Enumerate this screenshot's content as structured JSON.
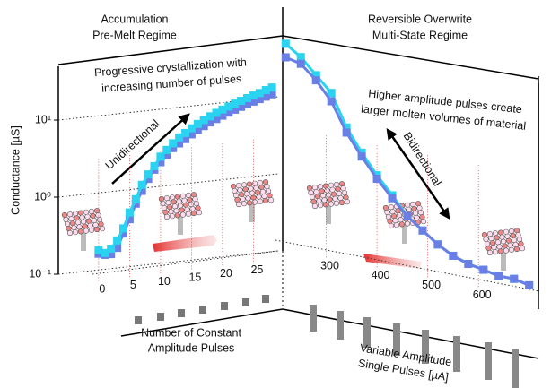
{
  "chart_data": [
    {
      "type": "line",
      "log_y": true,
      "grid": true,
      "ylabel": "Conductance [µS]",
      "xlabel": [
        "Number of Constant",
        "Amplitude Pulses"
      ],
      "xlim": [
        -1,
        29
      ],
      "xticks": [
        0,
        5,
        10,
        15,
        20,
        25
      ],
      "ylim": [
        0.1,
        50
      ],
      "yticks": [
        {
          "value": 0.1,
          "label": "10⁻¹"
        },
        {
          "value": 1,
          "label": "10⁰"
        },
        {
          "value": 10,
          "label": "10¹"
        }
      ],
      "x": [
        0,
        1,
        2,
        3,
        4,
        5,
        6,
        7,
        8,
        9,
        10,
        11,
        12,
        13,
        14,
        15,
        16,
        17,
        18,
        19,
        20,
        21,
        22,
        23,
        24,
        25,
        26,
        27,
        28
      ],
      "series": [
        {
          "color": "#6a7fe6",
          "values": [
            0.18,
            0.17,
            0.17,
            0.2,
            0.3,
            0.45,
            0.7,
            1.0,
            1.4,
            1.8,
            2.2,
            2.7,
            3.2,
            3.6,
            4.0,
            4.5,
            5,
            5.5,
            6,
            6.5,
            7,
            7.5,
            8,
            8.5,
            9,
            9.5,
            10,
            10.5,
            11
          ]
        },
        {
          "color": "#2ad4f0",
          "values": [
            0.2,
            0.18,
            0.2,
            0.25,
            0.35,
            0.55,
            0.8,
            1.2,
            1.6,
            2.0,
            2.6,
            3.1,
            3.7,
            4.3,
            4.8,
            5.4,
            6,
            6.6,
            7.2,
            7.8,
            8.4,
            9,
            9.6,
            10.2,
            10.8,
            11.4,
            12,
            12.8,
            13.5
          ]
        }
      ]
    },
    {
      "type": "line",
      "log_y": true,
      "grid": true,
      "xlabel": [
        "Variable Amplitude",
        "Single Pulses [µA]"
      ],
      "xlim": [
        200,
        720
      ],
      "xticks": [
        300,
        400,
        500,
        600
      ],
      "ylim": [
        0.08,
        40
      ],
      "x": [
        220,
        250,
        280,
        310,
        340,
        370,
        400,
        430,
        460,
        490,
        520,
        550,
        580,
        610,
        640,
        670,
        700
      ],
      "series": [
        {
          "color": "#2ad4f0",
          "values": [
            30,
            22,
            14,
            9,
            3.5,
            1.8,
            1.0,
            0.6,
            0.35,
            0.25,
            0.18,
            0.14,
            0.12,
            0.11,
            0.1,
            0.1,
            0.09
          ]
        },
        {
          "color": "#6a7fe6",
          "values": [
            20,
            18,
            12,
            7,
            3,
            1.6,
            0.9,
            0.55,
            0.35,
            0.25,
            0.18,
            0.14,
            0.12,
            0.11,
            0.1,
            0.1,
            0.09
          ]
        }
      ]
    }
  ],
  "annotations": [
    {
      "lines": [
        "Accumulation",
        "Pre-Melt Regime"
      ]
    },
    {
      "lines": [
        "Reversible Overwrite",
        "Multi-State Regime"
      ]
    },
    {
      "lines": [
        "Progressive crystallization with",
        "increasing number of pulses"
      ]
    },
    {
      "lines": [
        "Higher amplitude pulses create",
        "larger molten volumes of material"
      ]
    },
    {
      "lines": [
        "Unidirectional"
      ]
    },
    {
      "lines": [
        "Bidirectional"
      ]
    }
  ]
}
